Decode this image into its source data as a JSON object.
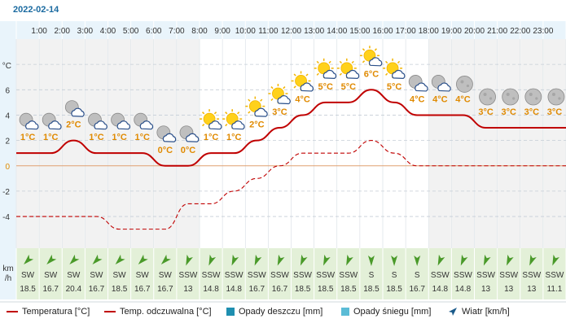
{
  "date": "2022-02-14",
  "temp_unit_label": "°C",
  "wind_unit_label": [
    "km",
    "/h"
  ],
  "legend": {
    "temperature": "Temperatura [°C]",
    "feels_like": "Temp. odczuwalna [°C]",
    "rain": "Opady deszczu [mm]",
    "snow": "Opady śniegu [mm]",
    "wind": "Wiatr [km/h]"
  },
  "colors": {
    "temperature": "#c00000",
    "feels_like": "#c00000",
    "rain": "#1e8fb0",
    "snow": "#5bbcd6",
    "temp_label": "#e08a00",
    "night_band": "#f2f2f2",
    "header_band": "#e9f4fb",
    "wind_band": "#e3f0d8"
  },
  "chart_data": {
    "type": "line",
    "hours": [
      "1:00",
      "2:00",
      "3:00",
      "4:00",
      "5:00",
      "6:00",
      "7:00",
      "8:00",
      "9:00",
      "10:00",
      "11:00",
      "12:00",
      "13:00",
      "14:00",
      "15:00",
      "16:00",
      "17:00",
      "18:00",
      "19:00",
      "20:00",
      "21:00",
      "22:00",
      "23:00"
    ],
    "ylim": [
      -6.5,
      10
    ],
    "yticks": [
      -4,
      -2,
      0,
      2,
      4,
      6
    ],
    "series": [
      {
        "name": "Temperatura [°C]",
        "slot_values": [
          1,
          1,
          2,
          1,
          1,
          1,
          0,
          0,
          1,
          1,
          2,
          3,
          4,
          5,
          5,
          6,
          5,
          4,
          4,
          4,
          3,
          3,
          3,
          3
        ],
        "labels": [
          "1°C",
          "1°C",
          "2°C",
          "1°C",
          "1°C",
          "1°C",
          "0°C",
          "0°C",
          "1°C",
          "1°C",
          "2°C",
          "3°C",
          "4°C",
          "5°C",
          "5°C",
          "6°C",
          "5°C",
          "4°C",
          "4°C",
          "4°C",
          "3°C",
          "3°C",
          "3°C",
          "3°C"
        ]
      },
      {
        "name": "Temp. odczuwalna [°C]",
        "slot_values": [
          -4,
          -4,
          -4,
          -4,
          -5,
          -5,
          -5,
          -3,
          -3,
          -2,
          -1,
          0,
          1,
          1,
          1,
          2,
          1,
          0,
          0,
          0,
          0,
          0,
          0,
          0
        ]
      }
    ],
    "weather_icons": [
      "night-partly-cloudy",
      "night-partly-cloudy",
      "night-partly-cloudy",
      "night-partly-cloudy",
      "night-partly-cloudy",
      "night-partly-cloudy",
      "night-partly-cloudy",
      "night-partly-cloudy",
      "day-partly-cloudy",
      "day-partly-cloudy",
      "day-partly-cloudy",
      "day-partly-cloudy",
      "day-partly-cloudy",
      "day-partly-cloudy",
      "day-partly-cloudy",
      "day-partly-cloudy",
      "day-partly-cloudy",
      "night-partly-cloudy",
      "night-partly-cloudy",
      "night-clear",
      "night-clear",
      "night-clear",
      "night-clear",
      "night-clear"
    ],
    "wind": {
      "directions": [
        "SW",
        "SW",
        "SW",
        "SW",
        "SW",
        "SW",
        "SW",
        "SSW",
        "SSW",
        "SSW",
        "SSW",
        "SSW",
        "SSW",
        "SSW",
        "SSW",
        "S",
        "S",
        "S",
        "SSW",
        "SSW",
        "SSW",
        "SSW",
        "SSW",
        "SSW"
      ],
      "speeds": [
        "18.5",
        "16.7",
        "20.4",
        "16.7",
        "18.5",
        "16.7",
        "16.7",
        "13",
        "14.8",
        "14.8",
        "16.7",
        "16.7",
        "18.5",
        "18.5",
        "18.5",
        "18.5",
        "18.5",
        "16.7",
        "14.8",
        "14.8",
        "13",
        "13",
        "13",
        "11.1"
      ]
    }
  }
}
